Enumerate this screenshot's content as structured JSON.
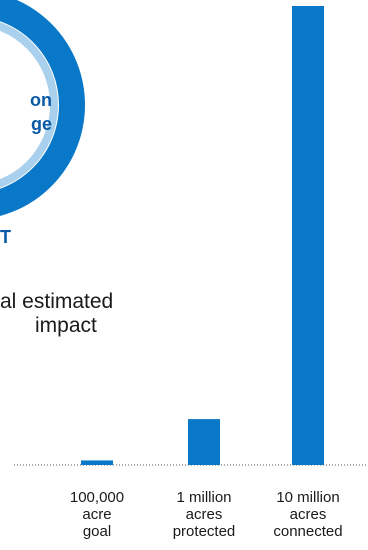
{
  "ring": {
    "line1": "on",
    "line2": "ge"
  },
  "impact": {
    "heading": "T",
    "line1": "al estimated",
    "line2": "impact"
  },
  "colors": {
    "accent": "#0a78c8",
    "ring_light": "#a9d0ec",
    "text_blue": "#0a5aa8"
  },
  "chart_data": {
    "type": "bar",
    "categories": [
      [
        "100,000",
        "acre",
        "goal"
      ],
      [
        "1 million",
        "acres",
        "protected"
      ],
      [
        "10 million",
        "acres",
        "connected"
      ]
    ],
    "values": [
      100000,
      1000000,
      10000000
    ],
    "title": "",
    "xlabel": "",
    "ylabel": "",
    "ylim": [
      0,
      10000000
    ],
    "grid": false
  }
}
